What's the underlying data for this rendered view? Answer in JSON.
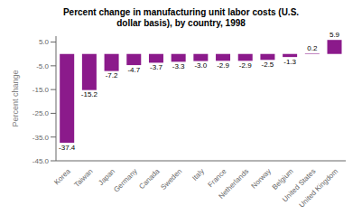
{
  "chart_data": {
    "type": "bar",
    "title": "Percent change in manufacturing unit labor costs (U.S.\ndollar basis), by country, 1998",
    "categories": [
      "Korea",
      "Taiwan",
      "Japan",
      "Germany",
      "Canada",
      "Sweden",
      "Italy",
      "France",
      "Netherlands",
      "Norway",
      "Belgium",
      "United States",
      "United Kingdom"
    ],
    "values": [
      -37.4,
      -15.2,
      -7.2,
      -4.7,
      -3.7,
      -3.3,
      -3.0,
      -2.9,
      -2.9,
      -2.5,
      -1.3,
      0.2,
      5.9
    ],
    "value_labels": [
      "-37.4",
      "-15.2",
      "-7.2",
      "-4.7",
      "-3.7",
      "-3.3",
      "-3.0",
      "-2.9",
      "-2.9",
      "-2.5",
      "-1.3",
      "0.2",
      "5.9"
    ],
    "data_labels": true,
    "color": "#8B1A8B",
    "ylabel": "Percent change",
    "ylim": [
      -45,
      7.5
    ],
    "yticks": [
      {
        "value": -45,
        "label": "-45.0"
      },
      {
        "value": -35,
        "label": "-35.0"
      },
      {
        "value": -25,
        "label": "-25.0"
      },
      {
        "value": -15,
        "label": "-15.0"
      },
      {
        "value": -5,
        "label": "-5.0"
      },
      {
        "value": 5,
        "label": "5.0"
      }
    ],
    "grid": false
  }
}
